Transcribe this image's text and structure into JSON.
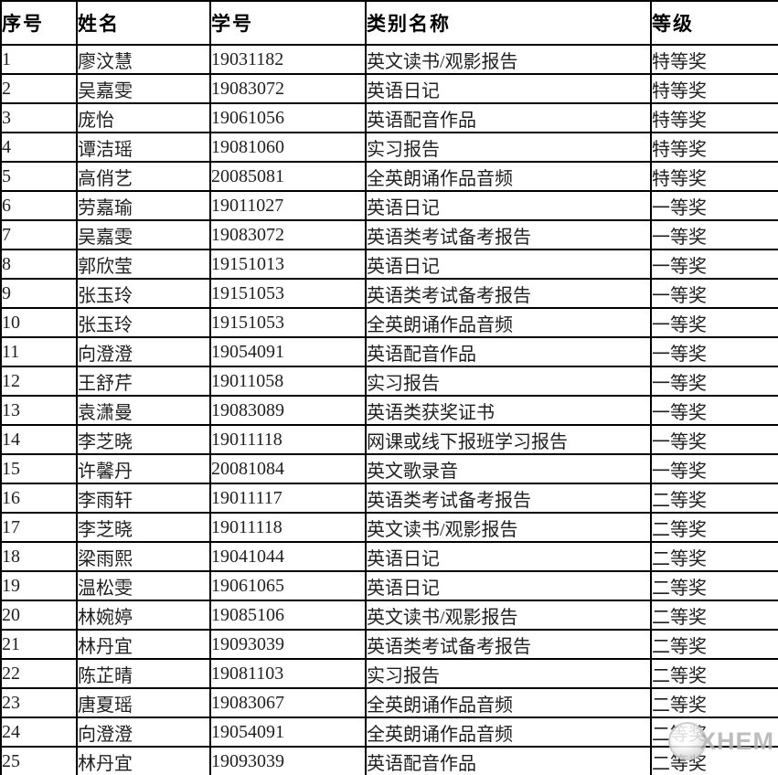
{
  "table": {
    "headers": [
      "序号",
      "姓名",
      "学号",
      "类别名称",
      "等级"
    ],
    "rows": [
      [
        "1",
        "廖汶慧",
        "19031182",
        "英文读书/观影报告",
        "特等奖"
      ],
      [
        "2",
        "吴嘉雯",
        "19083072",
        "英语日记",
        "特等奖"
      ],
      [
        "3",
        "庞怡",
        "19061056",
        "英语配音作品",
        "特等奖"
      ],
      [
        "4",
        "谭洁瑶",
        "19081060",
        "实习报告",
        "特等奖"
      ],
      [
        "5",
        "高俏艺",
        "20085081",
        "全英朗诵作品音频",
        "特等奖"
      ],
      [
        "6",
        "劳嘉瑜",
        "19011027",
        "英语日记",
        "一等奖"
      ],
      [
        "7",
        "吴嘉雯",
        "19083072",
        "英语类考试备考报告",
        "一等奖"
      ],
      [
        "8",
        "郭欣莹",
        "19151013",
        "英语日记",
        "一等奖"
      ],
      [
        "9",
        "张玉玲",
        "19151053",
        "英语类考试备考报告",
        "一等奖"
      ],
      [
        "10",
        "张玉玲",
        "19151053",
        "全英朗诵作品音频",
        "一等奖"
      ],
      [
        "11",
        "向澄澄",
        "19054091",
        "英语配音作品",
        "一等奖"
      ],
      [
        "12",
        "王舒芹",
        "19011058",
        "实习报告",
        "一等奖"
      ],
      [
        "13",
        "袁潇曼",
        "19083089",
        "英语类获奖证书",
        "一等奖"
      ],
      [
        "14",
        "李芝晓",
        "19011118",
        "网课或线下报班学习报告",
        "一等奖"
      ],
      [
        "15",
        "许馨丹",
        "20081084",
        "英文歌录音",
        "一等奖"
      ],
      [
        "16",
        "李雨轩",
        "19011117",
        "英语类考试备考报告",
        "二等奖"
      ],
      [
        "17",
        "李芝晓",
        "19011118",
        "英文读书/观影报告",
        "二等奖"
      ],
      [
        "18",
        "梁雨熙",
        "19041044",
        "英语日记",
        "二等奖"
      ],
      [
        "19",
        "温松雯",
        "19061065",
        "英语日记",
        "二等奖"
      ],
      [
        "20",
        "林婉婷",
        "19085106",
        "英文读书/观影报告",
        "二等奖"
      ],
      [
        "21",
        "林丹宜",
        "19093039",
        "英语类考试备考报告",
        "二等奖"
      ],
      [
        "22",
        "陈芷晴",
        "19081103",
        "实习报告",
        "二等奖"
      ],
      [
        "23",
        "唐夏瑶",
        "19083067",
        "全英朗诵作品音频",
        "二等奖"
      ],
      [
        "24",
        "向澄澄",
        "19054091",
        "全英朗诵作品音频",
        "二等奖"
      ],
      [
        "25",
        "林丹宜",
        "19093039",
        "英语配音作品",
        "二等奖"
      ]
    ]
  },
  "watermark": {
    "text": "XHEM",
    "logo_icon": "circle-logo-icon",
    "text_color": "#b3b1b1"
  },
  "colors": {
    "border": "#000000",
    "text": "#1f1f1f",
    "background": "#ffffff"
  }
}
